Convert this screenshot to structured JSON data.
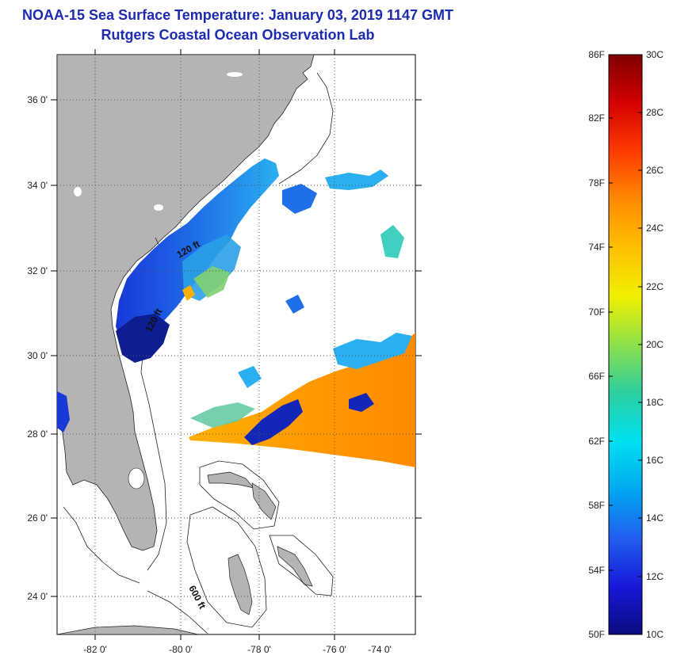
{
  "title": {
    "line1": "NOAA-15 Sea Surface Temperature:  January 03, 2019 1147 GMT",
    "line2": "Rutgers Coastal Ocean Observation Lab"
  },
  "map": {
    "lat_ticks": [
      "36 0'",
      "34 0'",
      "32 0'",
      "30 0'",
      "28 0'",
      "26 0'",
      "24 0'"
    ],
    "lon_ticks": [
      "-82 0'",
      "-80 0'",
      "-78 0'",
      "-76 0'",
      "-74 0'"
    ],
    "isobath_labels": [
      "120 ft",
      "120 ft",
      "600 ft"
    ],
    "colors": {
      "land": "#b4b4b4",
      "ocean_nodata": "#ffffff",
      "grid": "#555555"
    }
  },
  "colorbar": {
    "fahrenheit": [
      "86F",
      "82F",
      "78F",
      "74F",
      "70F",
      "66F",
      "62F",
      "58F",
      "54F",
      "50F"
    ],
    "celsius": [
      "30C",
      "28C",
      "26C",
      "24C",
      "22C",
      "20C",
      "18C",
      "16C",
      "14C",
      "12C",
      "10C"
    ],
    "gradient_colors": [
      "#7f0000",
      "#d40000",
      "#ff3b00",
      "#ff8a00",
      "#ffc000",
      "#f0f000",
      "#8ee04a",
      "#2ccfa0",
      "#00e0f0",
      "#00a8f0",
      "#2060f0",
      "#1818d8",
      "#0a0a80"
    ]
  }
}
